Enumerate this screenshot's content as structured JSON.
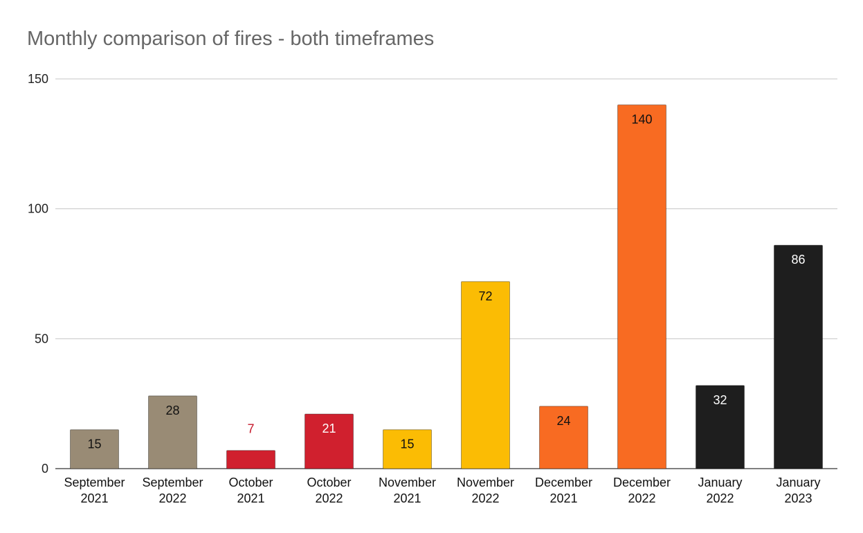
{
  "chart_data": {
    "type": "bar",
    "title": "Monthly comparison of fires - both timeframes",
    "xlabel": "",
    "ylabel": "",
    "ylim": [
      0,
      150
    ],
    "yticks": [
      0,
      50,
      100,
      150
    ],
    "grid": true,
    "categories": [
      [
        "September",
        "2021"
      ],
      [
        "September",
        "2022"
      ],
      [
        "October",
        "2021"
      ],
      [
        "October",
        "2022"
      ],
      [
        "November",
        "2021"
      ],
      [
        "November",
        "2022"
      ],
      [
        "December",
        "2021"
      ],
      [
        "December",
        "2022"
      ],
      [
        "January",
        "2022"
      ],
      [
        "January",
        "2023"
      ]
    ],
    "values": [
      15,
      28,
      7,
      21,
      15,
      72,
      24,
      140,
      32,
      86
    ],
    "colors": [
      "#998b75",
      "#998b75",
      "#d0202e",
      "#d0202e",
      "#fbbc04",
      "#fbbc04",
      "#f86b22",
      "#f86b22",
      "#1e1e1e",
      "#1e1e1e"
    ],
    "label_colors": [
      "#111111",
      "#111111",
      "#c5182a",
      "#ffffff",
      "#111111",
      "#111111",
      "#111111",
      "#111111",
      "#ffffff",
      "#ffffff"
    ]
  }
}
